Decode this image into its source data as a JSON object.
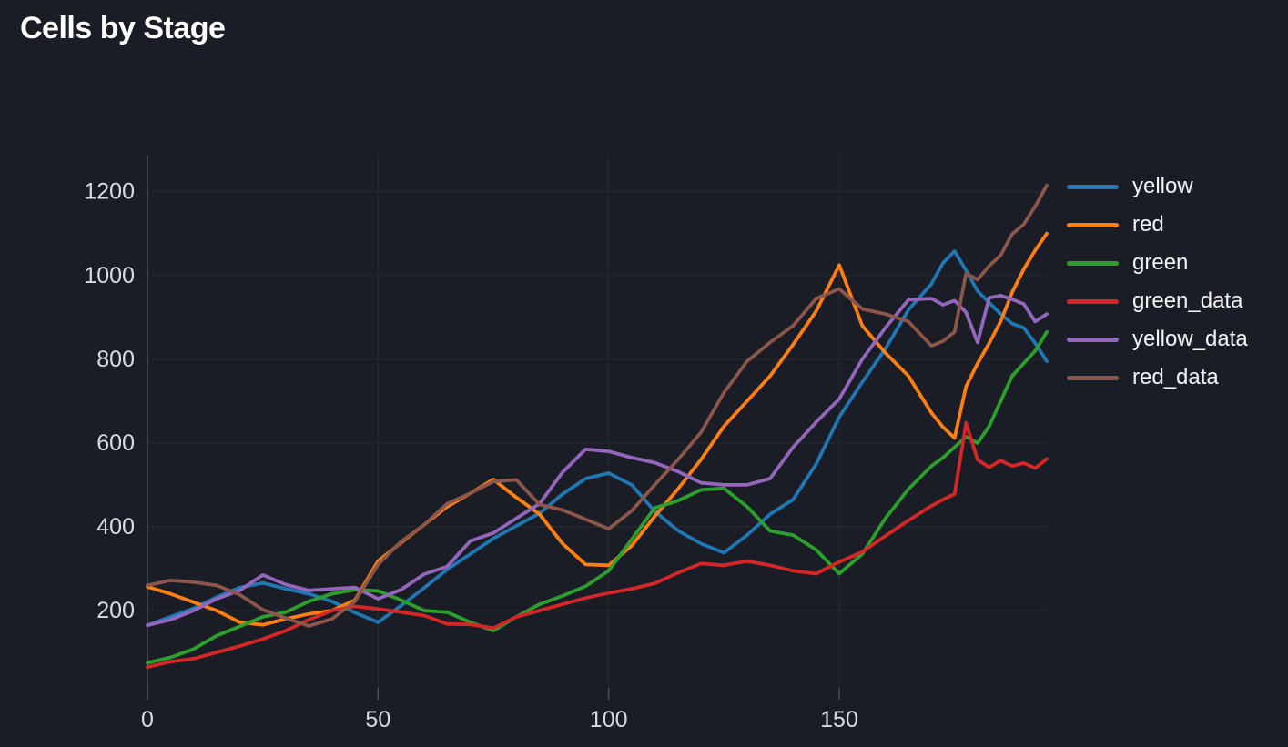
{
  "page": {
    "title": "Cells by Stage"
  },
  "colors": {
    "background": "#1a1d25",
    "grid": "#262a31",
    "axis": "#4b4f58",
    "tick_text": "#d9dbe0",
    "title_text": "#ffffff",
    "legend_text": "#f3f4f6"
  },
  "chart_data": {
    "type": "line",
    "title": "Cells by Stage",
    "xlabel": "",
    "ylabel": "",
    "grid": true,
    "legend_position": "right",
    "xlim": [
      0,
      195
    ],
    "ylim": [
      0,
      1285
    ],
    "x_ticks": [
      0,
      50,
      100,
      150
    ],
    "y_ticks": [
      200,
      400,
      600,
      800,
      1000,
      1200
    ],
    "x": [
      0,
      5,
      10,
      15,
      20,
      25,
      30,
      35,
      40,
      45,
      50,
      55,
      60,
      65,
      70,
      75,
      80,
      85,
      90,
      95,
      100,
      105,
      110,
      115,
      120,
      125,
      130,
      135,
      140,
      145,
      150,
      155,
      160,
      165,
      170,
      172.5,
      175,
      177.5,
      180,
      182.5,
      185,
      187.5,
      190,
      192.5,
      195
    ],
    "series": [
      {
        "name": "yellow",
        "color": "#1f77b4",
        "values": [
          165,
          185,
          205,
          232,
          255,
          266,
          252,
          240,
          222,
          195,
          172,
          212,
          254,
          298,
          335,
          372,
          402,
          432,
          478,
          515,
          528,
          500,
          437,
          391,
          360,
          338,
          380,
          430,
          465,
          550,
          662,
          745,
          825,
          918,
          980,
          1030,
          1058,
          1012,
          963,
          935,
          908,
          885,
          875,
          838,
          795
        ]
      },
      {
        "name": "red",
        "color": "#ff7f0e",
        "values": [
          257,
          240,
          220,
          200,
          172,
          166,
          180,
          192,
          200,
          225,
          318,
          362,
          405,
          448,
          480,
          513,
          470,
          430,
          360,
          310,
          308,
          355,
          425,
          490,
          560,
          640,
          700,
          760,
          835,
          915,
          1025,
          880,
          815,
          760,
          672,
          638,
          612,
          735,
          790,
          838,
          890,
          960,
          1015,
          1060,
          1100
        ]
      },
      {
        "name": "green",
        "color": "#2ca02c",
        "values": [
          75,
          88,
          108,
          140,
          162,
          185,
          196,
          222,
          240,
          250,
          247,
          225,
          200,
          196,
          172,
          152,
          185,
          215,
          235,
          258,
          295,
          370,
          445,
          462,
          488,
          492,
          448,
          390,
          380,
          345,
          288,
          335,
          420,
          490,
          545,
          565,
          590,
          615,
          600,
          640,
          700,
          760,
          790,
          820,
          865
        ]
      },
      {
        "name": "green_data",
        "color": "#d62728",
        "values": [
          65,
          78,
          85,
          100,
          115,
          132,
          152,
          178,
          200,
          210,
          204,
          196,
          188,
          168,
          167,
          158,
          185,
          200,
          215,
          230,
          242,
          252,
          265,
          290,
          312,
          308,
          318,
          308,
          295,
          288,
          316,
          340,
          378,
          415,
          450,
          465,
          478,
          648,
          560,
          542,
          558,
          545,
          552,
          540,
          562
        ]
      },
      {
        "name": "yellow_data",
        "color": "#9467bd",
        "values": [
          165,
          178,
          200,
          228,
          248,
          285,
          262,
          248,
          252,
          255,
          228,
          250,
          287,
          305,
          366,
          385,
          420,
          455,
          530,
          585,
          580,
          565,
          553,
          532,
          505,
          500,
          500,
          515,
          590,
          650,
          705,
          800,
          875,
          942,
          945,
          930,
          940,
          912,
          840,
          947,
          952,
          943,
          932,
          890,
          908
        ]
      },
      {
        "name": "red_data",
        "color": "#8c564b",
        "values": [
          260,
          272,
          268,
          260,
          238,
          202,
          182,
          163,
          180,
          222,
          310,
          365,
          405,
          455,
          480,
          508,
          512,
          453,
          440,
          418,
          395,
          438,
          500,
          560,
          625,
          720,
          795,
          840,
          880,
          945,
          968,
          920,
          908,
          890,
          832,
          843,
          865,
          1005,
          990,
          1023,
          1048,
          1099,
          1122,
          1165,
          1215
        ]
      }
    ]
  }
}
